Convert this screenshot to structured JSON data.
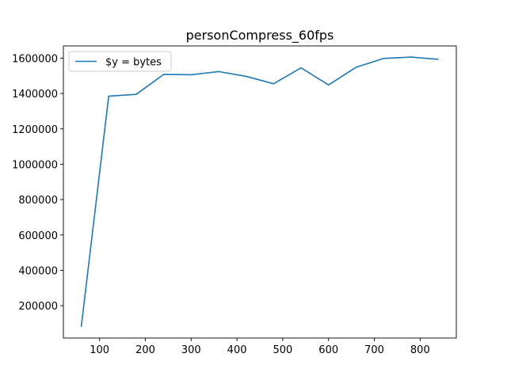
{
  "chart_data": {
    "type": "line",
    "title": "personCompress_60fps",
    "xlabel": "",
    "ylabel": "",
    "x": [
      60,
      120,
      180,
      240,
      300,
      360,
      420,
      480,
      540,
      600,
      660,
      720,
      780,
      840
    ],
    "series": [
      {
        "name": "$y = bytes",
        "color": "#1f77b4",
        "values": [
          80000,
          1385000,
          1395000,
          1508000,
          1506000,
          1524000,
          1497000,
          1455000,
          1545000,
          1448000,
          1548000,
          1598000,
          1606000,
          1593000
        ]
      }
    ],
    "xlim": [
      21,
      879
    ],
    "ylim": [
      17000,
      1669000
    ],
    "xticks": [
      100,
      200,
      300,
      400,
      500,
      600,
      700,
      800
    ],
    "yticks": [
      200000,
      400000,
      600000,
      800000,
      1000000,
      1200000,
      1400000,
      1600000
    ],
    "xtick_labels": [
      "100",
      "200",
      "300",
      "400",
      "500",
      "600",
      "700",
      "800"
    ],
    "ytick_labels": [
      "200000",
      "400000",
      "600000",
      "800000",
      "1000000",
      "1200000",
      "1400000",
      "1600000"
    ],
    "grid": false,
    "legend_position": "top-left"
  }
}
